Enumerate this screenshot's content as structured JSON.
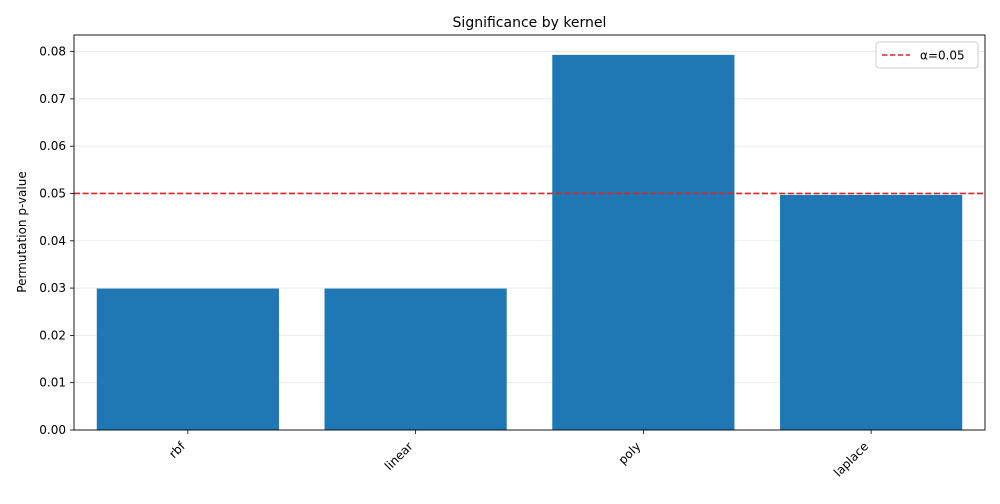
{
  "chart_data": {
    "type": "bar",
    "title": "Significance by kernel",
    "xlabel": "",
    "ylabel": "Permutation p-value",
    "categories": [
      "rbf",
      "linear",
      "poly",
      "laplace"
    ],
    "values": [
      0.0299,
      0.0299,
      0.0793,
      0.0497
    ],
    "ylim": [
      0,
      0.0835
    ],
    "yticks": [
      "0.00",
      "0.01",
      "0.02",
      "0.03",
      "0.04",
      "0.05",
      "0.06",
      "0.07",
      "0.08"
    ],
    "grid": "horizontal",
    "bar_color": "#1f77b4",
    "reference_line": {
      "value": 0.05,
      "label": "α=0.05",
      "color": "#d62728",
      "style": "dashed"
    },
    "legend": {
      "placement": "top-right",
      "entries": [
        "α=0.05"
      ]
    }
  }
}
